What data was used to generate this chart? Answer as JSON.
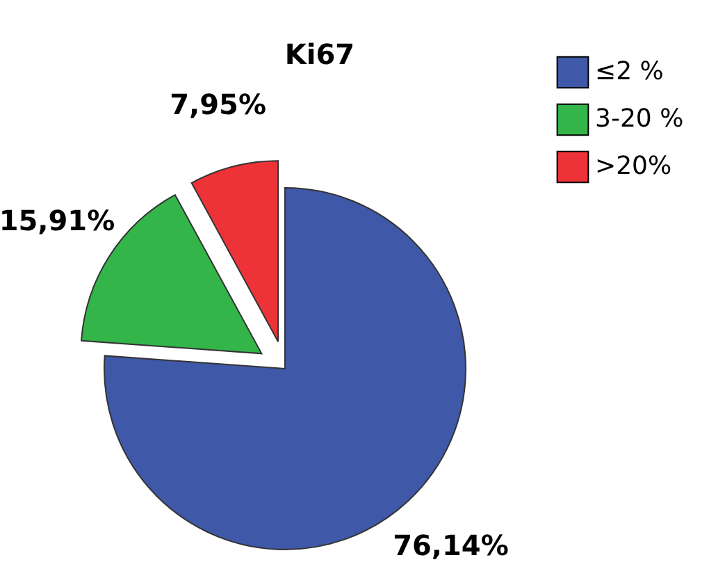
{
  "chart_data": {
    "type": "pie",
    "title": "Ki67",
    "categories": [
      "≤2 %",
      "3-20 %",
      ">20%"
    ],
    "values": [
      76.14,
      15.91,
      7.95
    ],
    "colors": [
      "#3f58a8",
      "#33b54a",
      "#ee3338"
    ],
    "value_labels": [
      "76,14%",
      "15,91%",
      "7,95%"
    ],
    "legend": "top right"
  }
}
